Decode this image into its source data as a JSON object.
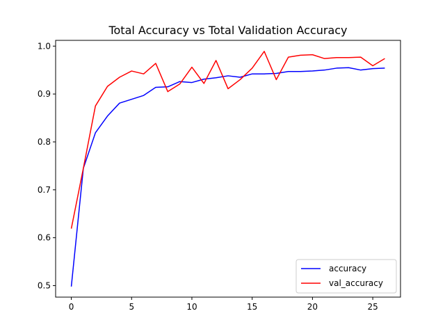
{
  "chart_data": {
    "type": "line",
    "title": "Total Accuracy vs Total Validation Accuracy",
    "xlabel": "",
    "ylabel": "",
    "xlim": [
      -1.3,
      27.3
    ],
    "ylim": [
      0.476,
      1.012
    ],
    "x_ticks": [
      0,
      5,
      10,
      15,
      20,
      25
    ],
    "y_ticks": [
      0.5,
      0.6,
      0.7,
      0.8,
      0.9,
      1.0
    ],
    "y_tick_labels": [
      "0.5",
      "0.6",
      "0.7",
      "0.8",
      "0.9",
      "1.0"
    ],
    "grid": false,
    "legend": "lower-right",
    "x": [
      0,
      1,
      2,
      3,
      4,
      5,
      6,
      7,
      8,
      9,
      10,
      11,
      12,
      13,
      14,
      15,
      16,
      17,
      18,
      19,
      20,
      21,
      22,
      23,
      24,
      25,
      26
    ],
    "series": [
      {
        "name": "accuracy",
        "color": "#0000ff",
        "values": [
          0.498,
          0.745,
          0.819,
          0.854,
          0.881,
          0.889,
          0.897,
          0.914,
          0.915,
          0.926,
          0.924,
          0.931,
          0.934,
          0.938,
          0.935,
          0.942,
          0.942,
          0.943,
          0.947,
          0.947,
          0.948,
          0.95,
          0.954,
          0.955,
          0.95,
          0.953,
          0.954
        ]
      },
      {
        "name": "val_accuracy",
        "color": "#ff0000",
        "values": [
          0.619,
          0.745,
          0.875,
          0.916,
          0.935,
          0.948,
          0.942,
          0.964,
          0.905,
          0.921,
          0.956,
          0.922,
          0.97,
          0.911,
          0.93,
          0.954,
          0.989,
          0.93,
          0.977,
          0.981,
          0.982,
          0.974,
          0.976,
          0.976,
          0.977,
          0.959,
          0.974
        ]
      }
    ]
  }
}
